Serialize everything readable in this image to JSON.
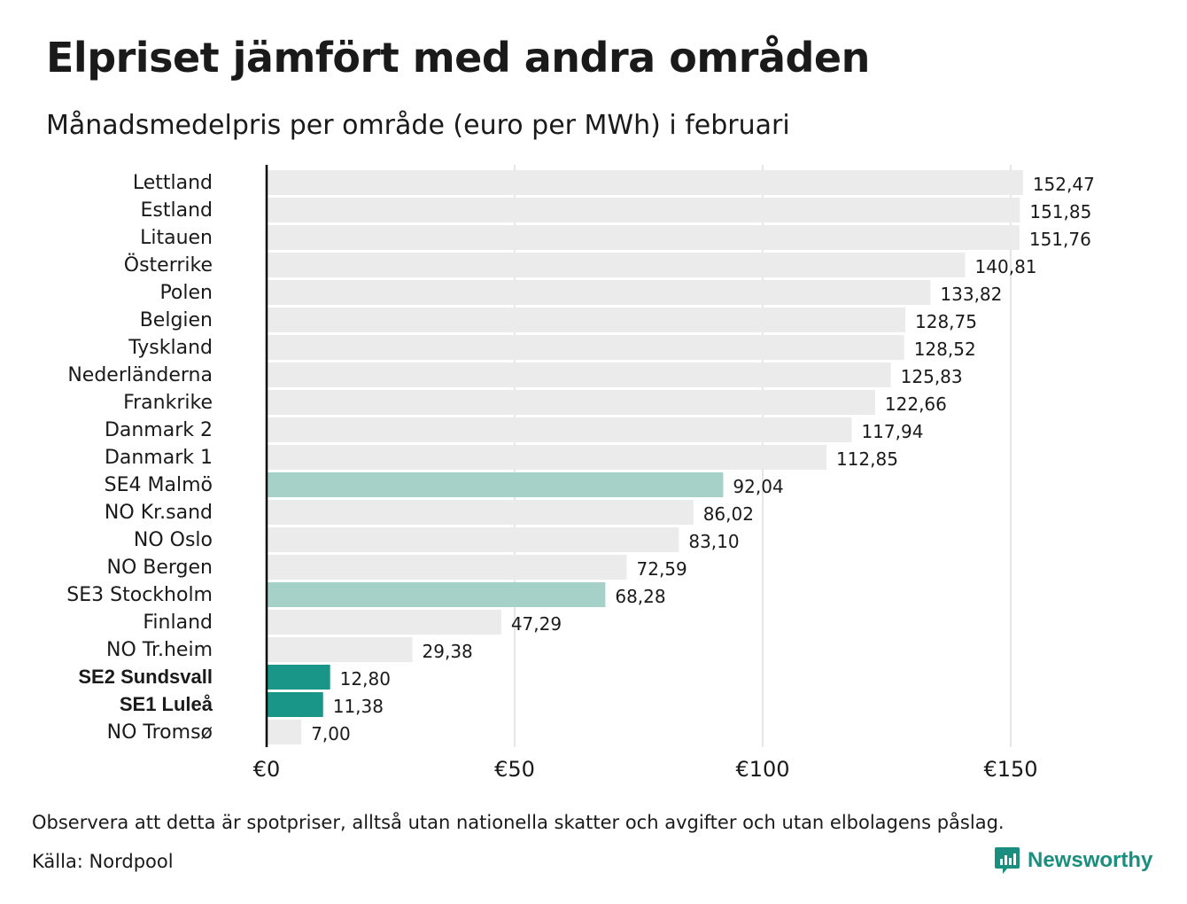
{
  "header": {
    "title": "Elpriset jämfört med andra områden",
    "subtitle": "Månadsmedelpris per område (euro per MWh) i februari"
  },
  "footer": {
    "note": "Observera att detta är spotpriser, alltså utan nationella skatter och avgifter och utan elbolagens påslag.",
    "source": "Källa: Nordpool",
    "brand": "Newsworthy",
    "brand_icon": "bar-chart-speech-bubble-icon"
  },
  "colors": {
    "default_bar": "#ebebeb",
    "highlight_light": "#a6d1c9",
    "highlight_dark": "#1a9688",
    "gridline": "#cccccc",
    "axis": "#000000",
    "brand": "#1a8f80"
  },
  "chart_data": {
    "type": "bar",
    "orientation": "horizontal",
    "title": "Elpriset jämfört med andra områden",
    "subtitle": "Månadsmedelpris per område (euro per MWh) i februari",
    "xlim": [
      0,
      165
    ],
    "x_ticks": [
      0,
      50,
      100,
      150
    ],
    "x_tick_labels": [
      "€0",
      "€50",
      "€100",
      "€150"
    ],
    "grid": "vertical",
    "categories": [
      "Lettland",
      "Estland",
      "Litauen",
      "Österrike",
      "Polen",
      "Belgien",
      "Tyskland",
      "Nederländerna",
      "Frankrike",
      "Danmark  2",
      "Danmark  1",
      "SE4  Malmö",
      "NO Kr.sand",
      "NO Oslo",
      "NO Bergen",
      "SE3  Stockholm",
      "Finland",
      "NO Tr.heim",
      "SE2 Sundsvall",
      "SE1 Luleå",
      "NO Tromsø"
    ],
    "values": [
      152.47,
      151.85,
      151.76,
      140.81,
      133.82,
      128.75,
      128.52,
      125.83,
      122.66,
      117.94,
      112.85,
      92.04,
      86.02,
      83.1,
      72.59,
      68.28,
      47.29,
      29.38,
      12.8,
      11.38,
      7.0
    ],
    "value_labels": [
      "152,47",
      "151,85",
      "151,76",
      "140,81",
      "133,82",
      "128,75",
      "128,52",
      "125,83",
      "122,66",
      "117,94",
      "112,85",
      "92,04",
      "86,02",
      "83,10",
      "72,59",
      "68,28",
      "47,29",
      "29,38",
      "12,80",
      "11,38",
      "7,00"
    ],
    "highlight": [
      "none",
      "none",
      "none",
      "none",
      "none",
      "none",
      "none",
      "none",
      "none",
      "none",
      "none",
      "light",
      "none",
      "none",
      "none",
      "light",
      "none",
      "none",
      "dark",
      "dark",
      "none"
    ],
    "bold_labels": [
      false,
      false,
      false,
      false,
      false,
      false,
      false,
      false,
      false,
      false,
      false,
      false,
      false,
      false,
      false,
      false,
      false,
      false,
      true,
      true,
      false
    ]
  }
}
